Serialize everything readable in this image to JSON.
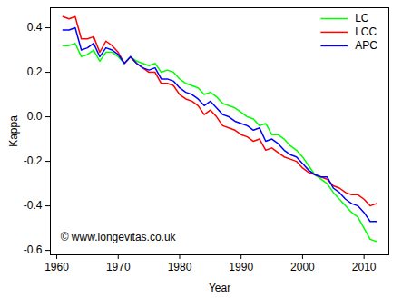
{
  "chart_data": {
    "type": "line",
    "x_label": "Year",
    "y_label": "Kappa",
    "annotation": "© www.longevitas.co.uk",
    "legend": "top-right",
    "grid": false,
    "xlim": [
      1958.96,
      2014.04
    ],
    "ylim": [
      -0.62,
      0.49
    ],
    "xticks": [
      1960,
      1970,
      1980,
      1990,
      2000,
      2010
    ],
    "yticks": [
      -0.6,
      -0.4,
      -0.2,
      {
        "value": 0,
        "label": "0.0"
      },
      0.2,
      0.4
    ],
    "x": [
      1961,
      1962,
      1963,
      1964,
      1965,
      1966,
      1967,
      1968,
      1969,
      1970,
      1971,
      1972,
      1973,
      1974,
      1975,
      1976,
      1977,
      1978,
      1979,
      1980,
      1981,
      1982,
      1983,
      1984,
      1985,
      1986,
      1987,
      1988,
      1989,
      1990,
      1991,
      1992,
      1993,
      1994,
      1995,
      1996,
      1997,
      1998,
      1999,
      2000,
      2001,
      2002,
      2003,
      2004,
      2005,
      2006,
      2007,
      2008,
      2009,
      2010,
      2011,
      2012
    ],
    "series": [
      {
        "name": "LC",
        "color": "#00ff00",
        "values": [
          0.32,
          0.32,
          0.33,
          0.27,
          0.28,
          0.3,
          0.25,
          0.29,
          0.29,
          0.27,
          0.24,
          0.27,
          0.25,
          0.24,
          0.23,
          0.24,
          0.2,
          0.21,
          0.2,
          0.17,
          0.15,
          0.14,
          0.13,
          0.1,
          0.11,
          0.09,
          0.06,
          0.05,
          0.04,
          0.02,
          0.0,
          -0.01,
          -0.04,
          -0.03,
          -0.08,
          -0.08,
          -0.1,
          -0.13,
          -0.15,
          -0.18,
          -0.22,
          -0.26,
          -0.28,
          -0.3,
          -0.34,
          -0.37,
          -0.4,
          -0.43,
          -0.45,
          -0.5,
          -0.55,
          -0.56
        ]
      },
      {
        "name": "LCC",
        "color": "#ff0000",
        "values": [
          0.45,
          0.44,
          0.45,
          0.35,
          0.35,
          0.36,
          0.29,
          0.34,
          0.32,
          0.29,
          0.24,
          0.27,
          0.24,
          0.22,
          0.2,
          0.2,
          0.15,
          0.15,
          0.14,
          0.1,
          0.08,
          0.07,
          0.05,
          0.01,
          0.03,
          0.0,
          -0.04,
          -0.05,
          -0.06,
          -0.08,
          -0.09,
          -0.11,
          -0.1,
          -0.15,
          -0.14,
          -0.16,
          -0.18,
          -0.19,
          -0.2,
          -0.23,
          -0.25,
          -0.26,
          -0.27,
          -0.28,
          -0.31,
          -0.32,
          -0.34,
          -0.35,
          -0.35,
          -0.37,
          -0.4,
          -0.39
        ]
      },
      {
        "name": "APC",
        "color": "#0000ff",
        "values": [
          0.39,
          0.39,
          0.4,
          0.3,
          0.31,
          0.33,
          0.27,
          0.31,
          0.3,
          0.28,
          0.24,
          0.27,
          0.24,
          0.22,
          0.21,
          0.22,
          0.17,
          0.17,
          0.16,
          0.13,
          0.11,
          0.1,
          0.08,
          0.05,
          0.07,
          0.04,
          0.01,
          0.0,
          -0.02,
          -0.03,
          -0.04,
          -0.06,
          -0.05,
          -0.11,
          -0.1,
          -0.12,
          -0.15,
          -0.17,
          -0.18,
          -0.21,
          -0.24,
          -0.26,
          -0.27,
          -0.27,
          -0.32,
          -0.34,
          -0.37,
          -0.39,
          -0.4,
          -0.43,
          -0.47,
          -0.47
        ]
      }
    ]
  }
}
